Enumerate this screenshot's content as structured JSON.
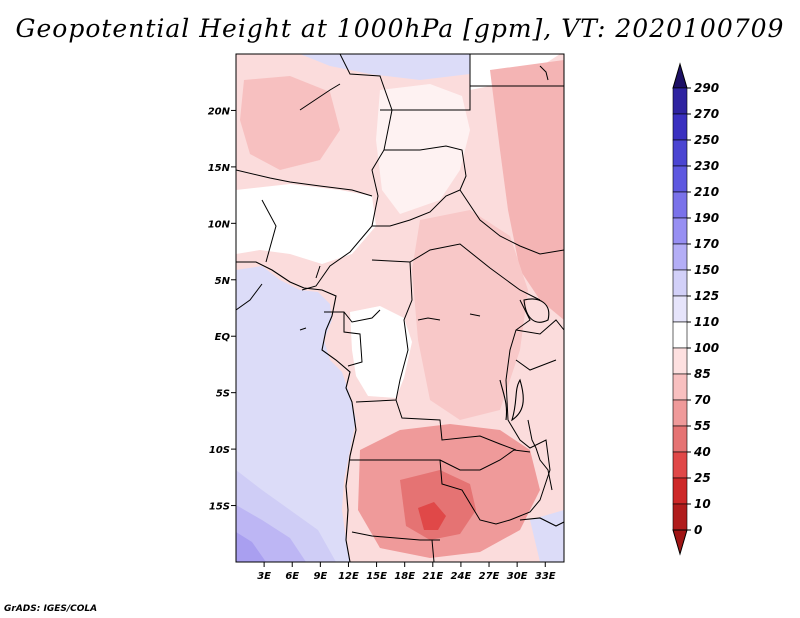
{
  "title": "Geopotential Height at 1000hPa [gpm], VT: 2020100709",
  "footer": "GrADS: IGES/COLA",
  "map": {
    "lon_range": [
      0,
      35
    ],
    "lat_range": [
      -20,
      25
    ],
    "x_ticks": [
      {
        "lon": 3,
        "label": "3E"
      },
      {
        "lon": 6,
        "label": "6E"
      },
      {
        "lon": 9,
        "label": "9E"
      },
      {
        "lon": 12,
        "label": "12E"
      },
      {
        "lon": 15,
        "label": "15E"
      },
      {
        "lon": 18,
        "label": "18E"
      },
      {
        "lon": 21,
        "label": "21E"
      },
      {
        "lon": 24,
        "label": "24E"
      },
      {
        "lon": 27,
        "label": "27E"
      },
      {
        "lon": 30,
        "label": "30E"
      },
      {
        "lon": 33,
        "label": "33E"
      }
    ],
    "y_ticks": [
      {
        "lat": 20,
        "label": "20N"
      },
      {
        "lat": 15,
        "label": "15N"
      },
      {
        "lat": 10,
        "label": "10N"
      },
      {
        "lat": 5,
        "label": "5N"
      },
      {
        "lat": 0,
        "label": "EQ"
      },
      {
        "lat": -5,
        "label": "5S"
      },
      {
        "lat": -10,
        "label": "10S"
      },
      {
        "lat": -15,
        "label": "15S"
      }
    ]
  },
  "colorbar": {
    "levels": [
      "290",
      "270",
      "250",
      "230",
      "210",
      "190",
      "170",
      "150",
      "125",
      "110",
      "100",
      "85",
      "70",
      "55",
      "40",
      "25",
      "10",
      "0"
    ],
    "colors": [
      "#241878",
      "#2e23a0",
      "#3a30c0",
      "#4b45d2",
      "#5e58e0",
      "#7a72ea",
      "#978ff2",
      "#b4aef6",
      "#d2d0f8",
      "#e6e4fb",
      "#ffffff",
      "#fde0e0",
      "#f8c0c0",
      "#ef9a9a",
      "#e57373",
      "#e04848",
      "#cd2828",
      "#b01c1c"
    ],
    "top_color": "#1d1065",
    "bottom_color": "#a01515"
  },
  "colors": {
    "land_default": "#fbd8d8",
    "ocean": "#dcdcf8",
    "border_line": "#000000"
  }
}
